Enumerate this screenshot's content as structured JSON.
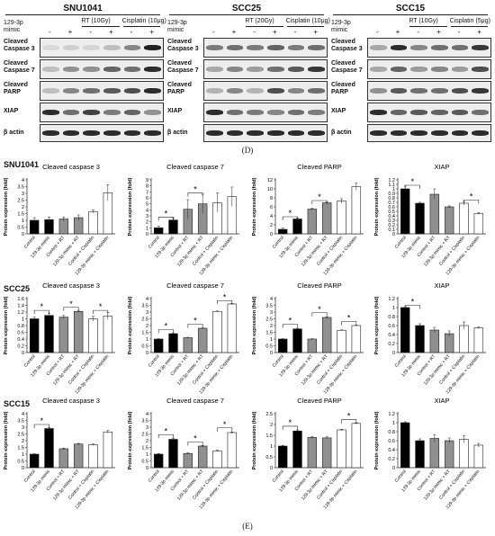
{
  "figure": {
    "label_d": "(D)",
    "label_e": "(E)"
  },
  "blots": [
    {
      "cell_line": "SNU1041",
      "mimic_label": "129-3p mimic",
      "conditions": [
        {
          "label": "RT (10Gy)"
        },
        {
          "label": "Cisplatin (10μg)"
        }
      ],
      "signs": [
        "-",
        "+",
        "-",
        "+",
        "-",
        "+"
      ],
      "rows": [
        {
          "label": "Cleaved Caspase 3",
          "band": [
            0.08,
            0.12,
            0.1,
            0.2,
            0.45,
            0.9
          ]
        },
        {
          "label": "Cleaved Caspase 7",
          "band": [
            0.2,
            0.4,
            0.4,
            0.6,
            0.55,
            0.85
          ]
        },
        {
          "label": "Cleaved PARP",
          "band": [
            0.2,
            0.45,
            0.55,
            0.65,
            0.7,
            0.85
          ]
        },
        {
          "label": "XIAP",
          "band": [
            0.85,
            0.55,
            0.75,
            0.5,
            0.6,
            0.4
          ]
        },
        {
          "label": "β actin",
          "band": [
            0.85,
            0.85,
            0.85,
            0.85,
            0.85,
            0.85
          ]
        }
      ]
    },
    {
      "cell_line": "SCC25",
      "mimic_label": "129-3p mimic",
      "conditions": [
        {
          "label": "RT (20Gy)"
        },
        {
          "label": "Cisplatin (10μg)"
        }
      ],
      "signs": [
        "-",
        "+",
        "-",
        "+",
        "-",
        "+"
      ],
      "rows": [
        {
          "label": "Cleaved Caspase 3",
          "band": [
            0.5,
            0.55,
            0.5,
            0.6,
            0.5,
            0.55
          ]
        },
        {
          "label": "Cleaved Caspase 7",
          "band": [
            0.3,
            0.45,
            0.35,
            0.55,
            0.65,
            0.8
          ]
        },
        {
          "label": "Cleaved PARP",
          "band": [
            0.25,
            0.45,
            0.25,
            0.7,
            0.45,
            0.55
          ]
        },
        {
          "label": "XIAP",
          "band": [
            0.85,
            0.55,
            0.5,
            0.45,
            0.55,
            0.5
          ]
        },
        {
          "label": "β actin",
          "band": [
            0.85,
            0.85,
            0.85,
            0.85,
            0.85,
            0.85
          ]
        }
      ]
    },
    {
      "cell_line": "SCC15",
      "mimic_label": "129-3p mimic",
      "conditions": [
        {
          "label": "RT (10Gy)"
        },
        {
          "label": "Cisplatin (5μg)"
        }
      ],
      "signs": [
        "-",
        "+",
        "-",
        "+",
        "-",
        "+"
      ],
      "rows": [
        {
          "label": "Cleaved Caspase 3",
          "band": [
            0.3,
            0.85,
            0.45,
            0.55,
            0.55,
            0.8
          ]
        },
        {
          "label": "Cleaved Caspase 7",
          "band": [
            0.3,
            0.6,
            0.35,
            0.45,
            0.35,
            0.7
          ]
        },
        {
          "label": "Cleaved PARP",
          "band": [
            0.4,
            0.65,
            0.55,
            0.55,
            0.7,
            0.8
          ]
        },
        {
          "label": "XIAP",
          "band": [
            0.85,
            0.6,
            0.65,
            0.6,
            0.65,
            0.55
          ]
        },
        {
          "label": "β actin",
          "band": [
            0.85,
            0.85,
            0.85,
            0.85,
            0.85,
            0.85
          ]
        }
      ]
    }
  ],
  "chart_data": [
    {
      "type": "bar",
      "row_label": "SNU1041",
      "title": "Cleaved caspase 3",
      "ylabel": "Protein expression (fold)",
      "yticks": [
        0,
        0.5,
        1,
        1.5,
        2,
        2.5,
        3,
        3.5,
        4
      ],
      "ytick_labels": [
        "0",
        "0.5",
        "1",
        "1.5",
        "2",
        "2.5",
        "3",
        "3.5",
        "4"
      ],
      "ylim": [
        0,
        4
      ],
      "categories": [
        "Control",
        "129-3p mimic",
        "Control + RT",
        "129-3p mimic + RT",
        "Control + Cisplatin",
        "129-3p mimic + Cisplatin"
      ],
      "bar_colors": [
        "#000000",
        "#000000",
        "#909090",
        "#909090",
        "#ffffff",
        "#ffffff"
      ],
      "values": [
        1.0,
        1.05,
        1.1,
        1.2,
        1.65,
        3.05
      ],
      "errors": [
        0.2,
        0.2,
        0.15,
        0.2,
        0.1,
        0.6
      ],
      "sig": []
    },
    {
      "type": "bar",
      "row_label": "",
      "title": "Cleaved caspase 7",
      "ylabel": "Protein expression (fold)",
      "yticks": [
        0,
        1,
        2,
        3,
        4,
        5,
        6,
        7,
        8,
        9
      ],
      "ytick_labels": [
        "0",
        "1",
        "2",
        "3",
        "4",
        "5",
        "6",
        "7",
        "8",
        "9"
      ],
      "ylim": [
        0,
        9
      ],
      "categories": [
        "Control",
        "129-3p mimic",
        "Control + RT",
        "129-3p mimic + RT",
        "Control + Cisplatin",
        "129-3p mimic + Cisplatin"
      ],
      "bar_colors": [
        "#000000",
        "#000000",
        "#909090",
        "#909090",
        "#ffffff",
        "#ffffff"
      ],
      "values": [
        1.0,
        2.3,
        4.1,
        5.0,
        5.2,
        6.2
      ],
      "errors": [
        0.3,
        0.3,
        1.6,
        1.6,
        1.6,
        1.6
      ],
      "sig": [
        {
          "from": 0,
          "to": 1,
          "y": 2.8,
          "label": "*"
        },
        {
          "from": 2,
          "to": 3,
          "y": 6.8,
          "label": "*"
        }
      ]
    },
    {
      "type": "bar",
      "row_label": "",
      "title": "Cleaved PARP",
      "ylabel": "Protein expression (fold)",
      "yticks": [
        0,
        2,
        4,
        6,
        8,
        10,
        12
      ],
      "ytick_labels": [
        "0",
        "2",
        "4",
        "6",
        "8",
        "10",
        "12"
      ],
      "ylim": [
        0,
        12
      ],
      "categories": [
        "Control",
        "129-3p mimic",
        "Control + RT",
        "129-3p mimic + RT",
        "Control + Cisplatin",
        "129-3p mimic + Cisplatin"
      ],
      "bar_colors": [
        "#000000",
        "#000000",
        "#909090",
        "#909090",
        "#ffffff",
        "#ffffff"
      ],
      "values": [
        1.0,
        3.3,
        5.5,
        6.9,
        7.3,
        10.5
      ],
      "errors": [
        0.3,
        0.2,
        0.2,
        0.2,
        0.5,
        0.8
      ],
      "sig": [
        {
          "from": 0,
          "to": 1,
          "y": 3.8,
          "label": "*"
        },
        {
          "from": 2,
          "to": 3,
          "y": 7.4,
          "label": "*"
        }
      ]
    },
    {
      "type": "bar",
      "row_label": "",
      "title": "XIAP",
      "ylabel": "Protein expression (fold)",
      "yticks": [
        0,
        0.1,
        0.2,
        0.3,
        0.4,
        0.5,
        0.6,
        0.7,
        0.8,
        0.9,
        1,
        1.1,
        1.2
      ],
      "ytick_labels": [
        "0",
        "0.1",
        "0.2",
        "0.3",
        "0.4",
        "0.5",
        "0.6",
        "0.7",
        "0.8",
        "0.9",
        "1",
        "1.1",
        "1.2"
      ],
      "ylim": [
        0,
        1.2
      ],
      "categories": [
        "Control",
        "129-3p mimic",
        "Control + RT",
        "129-3p mimic + RT",
        "Control + Cisplatin",
        "129-3p mimic + Cisplatin"
      ],
      "bar_colors": [
        "#000000",
        "#000000",
        "#909090",
        "#909090",
        "#ffffff",
        "#ffffff"
      ],
      "values": [
        1.0,
        0.68,
        0.88,
        0.6,
        0.68,
        0.45
      ],
      "errors": [
        0.06,
        0.02,
        0.12,
        0.02,
        0.04,
        0.02
      ],
      "sig": [
        {
          "from": 0,
          "to": 1,
          "y": 1.08,
          "label": "*"
        },
        {
          "from": 4,
          "to": 5,
          "y": 0.75,
          "label": "*"
        }
      ]
    },
    {
      "type": "bar",
      "row_label": "SCC25",
      "title": "Cleaved caspase 3",
      "ylabel": "Protein expression (fold)",
      "yticks": [
        0,
        0.2,
        0.4,
        0.6,
        0.8,
        1,
        1.2,
        1.4,
        1.6
      ],
      "ytick_labels": [
        "0",
        "0.2",
        "0.4",
        "0.6",
        "0.8",
        "1",
        "1.2",
        "1.4",
        "1.6"
      ],
      "ylim": [
        0,
        1.6
      ],
      "categories": [
        "Control",
        "129-3p mimic",
        "Control + RT",
        "129-3p mimic + RT",
        "Control + Cisplatin",
        "129-3p mimic + Cisplatin"
      ],
      "bar_colors": [
        "#000000",
        "#000000",
        "#909090",
        "#909090",
        "#ffffff",
        "#ffffff"
      ],
      "values": [
        1.0,
        1.1,
        1.05,
        1.22,
        1.0,
        1.08
      ],
      "errors": [
        0.05,
        0.07,
        0.05,
        0.03,
        0.07,
        0.1
      ],
      "sig": [
        {
          "from": 0,
          "to": 1,
          "y": 1.25,
          "label": "*"
        },
        {
          "from": 2,
          "to": 3,
          "y": 1.34,
          "label": "*"
        },
        {
          "from": 4,
          "to": 5,
          "y": 1.25,
          "label": "*"
        }
      ]
    },
    {
      "type": "bar",
      "row_label": "",
      "title": "Cleaved caspase 7",
      "ylabel": "Protein expression (fold)",
      "yticks": [
        0,
        0.5,
        1,
        1.5,
        2,
        2.5,
        3,
        3.5,
        4
      ],
      "ytick_labels": [
        "0",
        "0.5",
        "1",
        "1.5",
        "2",
        "2.5",
        "3",
        "3.5",
        "4"
      ],
      "ylim": [
        0,
        4
      ],
      "categories": [
        "Control",
        "129-3p mimic",
        "Control + RT",
        "129-3p mimic + RT",
        "Control + Cisplatin",
        "129-3p mimic + Cisplatin"
      ],
      "bar_colors": [
        "#000000",
        "#000000",
        "#909090",
        "#909090",
        "#ffffff",
        "#ffffff"
      ],
      "values": [
        1.0,
        1.4,
        1.1,
        1.8,
        3.05,
        3.6
      ],
      "errors": [
        0.03,
        0.03,
        0.03,
        0.03,
        0.03,
        0.05
      ],
      "sig": [
        {
          "from": 0,
          "to": 1,
          "y": 1.7,
          "label": "*"
        },
        {
          "from": 2,
          "to": 3,
          "y": 2.1,
          "label": "*"
        },
        {
          "from": 4,
          "to": 5,
          "y": 3.85,
          "label": "*"
        }
      ]
    },
    {
      "type": "bar",
      "row_label": "",
      "title": "Cleaved PARP",
      "ylabel": "Protein expression (fold)",
      "yticks": [
        0,
        0.5,
        1,
        1.5,
        2,
        2.5,
        3,
        3.5,
        4
      ],
      "ytick_labels": [
        "0",
        "0.5",
        "1",
        "1.5",
        "2",
        "2.5",
        "3",
        "3.5",
        "4"
      ],
      "ylim": [
        0,
        4
      ],
      "categories": [
        "Control",
        "129-3p mimic",
        "Control + RT",
        "129-3p mimic + RT",
        "Control + Cisplatin",
        "129-3p mimic + Cisplatin"
      ],
      "bar_colors": [
        "#000000",
        "#000000",
        "#909090",
        "#909090",
        "#ffffff",
        "#ffffff"
      ],
      "values": [
        1.0,
        1.75,
        1.0,
        2.6,
        1.65,
        2.0
      ],
      "errors": [
        0.03,
        0.05,
        0.03,
        0.05,
        0.03,
        0.03
      ],
      "sig": [
        {
          "from": 0,
          "to": 1,
          "y": 2.1,
          "label": "*"
        },
        {
          "from": 2,
          "to": 3,
          "y": 2.95,
          "label": "*"
        },
        {
          "from": 4,
          "to": 5,
          "y": 2.3,
          "label": "*"
        }
      ]
    },
    {
      "type": "bar",
      "row_label": "",
      "title": "XIAP",
      "ylabel": "Protein expression (fold)",
      "yticks": [
        0,
        0.2,
        0.4,
        0.6,
        0.8,
        1,
        1.2
      ],
      "ytick_labels": [
        "0",
        "0.2",
        "0.4",
        "0.6",
        "0.8",
        "1",
        "1.2"
      ],
      "ylim": [
        0,
        1.2
      ],
      "categories": [
        "Control",
        "129-3p mimic",
        "Control + RT",
        "129-3p mimic + RT",
        "Control + Cisplatin",
        "129-3p mimic + Cisplatin"
      ],
      "bar_colors": [
        "#000000",
        "#000000",
        "#909090",
        "#909090",
        "#ffffff",
        "#ffffff"
      ],
      "values": [
        1.0,
        0.6,
        0.5,
        0.42,
        0.6,
        0.55
      ],
      "errors": [
        0.02,
        0.04,
        0.06,
        0.06,
        0.08,
        0.02
      ],
      "sig": [
        {
          "from": 0,
          "to": 1,
          "y": 1.05,
          "label": "*"
        }
      ]
    },
    {
      "type": "bar",
      "row_label": "SCC15",
      "title": "Cleaved caspase 3",
      "ylabel": "Protein expression (fold)",
      "yticks": [
        0,
        0.5,
        1,
        1.5,
        2,
        2.5,
        3,
        3.5,
        4
      ],
      "ytick_labels": [
        "0",
        "0.5",
        "1",
        "1.5",
        "2",
        "2.5",
        "3",
        "3.5",
        "4"
      ],
      "ylim": [
        0,
        4
      ],
      "categories": [
        "Control",
        "129-3p mimic",
        "Control + RT",
        "129-3p mimic + RT",
        "Control + Cisplatin",
        "129-3p mimic + Cisplatin"
      ],
      "bar_colors": [
        "#000000",
        "#000000",
        "#909090",
        "#909090",
        "#ffffff",
        "#ffffff"
      ],
      "values": [
        1.0,
        2.9,
        1.4,
        1.75,
        1.7,
        2.65
      ],
      "errors": [
        0.03,
        0.05,
        0.05,
        0.05,
        0.05,
        0.1
      ],
      "sig": [
        {
          "from": 0,
          "to": 1,
          "y": 3.2,
          "label": "*"
        }
      ]
    },
    {
      "type": "bar",
      "row_label": "",
      "title": "Cleaved caspase 7",
      "ylabel": "Protein expression (fold)",
      "yticks": [
        0,
        0.5,
        1,
        1.5,
        2,
        2.5,
        3,
        3.5,
        4
      ],
      "ytick_labels": [
        "0",
        "0.5",
        "1",
        "1.5",
        "2",
        "2.5",
        "3",
        "3.5",
        "4"
      ],
      "ylim": [
        0,
        4
      ],
      "categories": [
        "Control",
        "129-3p mimic",
        "Control + RT",
        "129-3p mimic + RT",
        "Control + Cisplatin",
        "129-3p mimic + Cisplatin"
      ],
      "bar_colors": [
        "#000000",
        "#000000",
        "#909090",
        "#909090",
        "#ffffff",
        "#ffffff"
      ],
      "values": [
        1.0,
        2.1,
        1.05,
        1.6,
        1.25,
        2.6
      ],
      "errors": [
        0.05,
        0.05,
        0.05,
        0.05,
        0.05,
        0.05
      ],
      "sig": [
        {
          "from": 0,
          "to": 1,
          "y": 2.45,
          "label": "*"
        },
        {
          "from": 2,
          "to": 3,
          "y": 1.9,
          "label": "*"
        },
        {
          "from": 4,
          "to": 5,
          "y": 2.95,
          "label": "*"
        }
      ]
    },
    {
      "type": "bar",
      "row_label": "",
      "title": "Cleaved PARP",
      "ylabel": "Protein expression (fold)",
      "yticks": [
        0,
        0.5,
        1,
        1.5,
        2,
        2.5
      ],
      "ytick_labels": [
        "0",
        "0.5",
        "1",
        "1.5",
        "2",
        "2.5"
      ],
      "ylim": [
        0,
        2.5
      ],
      "categories": [
        "Control",
        "129-3p mimic",
        "Control + RT",
        "129-3p mimic + RT",
        "Control + Cisplatin",
        "129-3p mimic + Cisplatin"
      ],
      "bar_colors": [
        "#000000",
        "#000000",
        "#909090",
        "#909090",
        "#ffffff",
        "#ffffff"
      ],
      "values": [
        1.0,
        1.7,
        1.4,
        1.38,
        1.75,
        2.05
      ],
      "errors": [
        0.03,
        0.05,
        0.05,
        0.05,
        0.03,
        0.03
      ],
      "sig": [
        {
          "from": 0,
          "to": 1,
          "y": 1.92,
          "label": "*"
        },
        {
          "from": 4,
          "to": 5,
          "y": 2.22,
          "label": "*"
        }
      ]
    },
    {
      "type": "bar",
      "row_label": "",
      "title": "XIAP",
      "ylabel": "Protein expression (fold)",
      "yticks": [
        0,
        0.2,
        0.4,
        0.6,
        0.8,
        1,
        1.2
      ],
      "ytick_labels": [
        "0",
        "0.2",
        "0.4",
        "0.6",
        "0.8",
        "1",
        "1.2"
      ],
      "ylim": [
        0,
        1.2
      ],
      "categories": [
        "Control",
        "129-3p mimic",
        "Control + RT",
        "129-3p mimic + RT",
        "Control + Cisplatin",
        "129-3p mimic + Cisplatin"
      ],
      "bar_colors": [
        "#000000",
        "#000000",
        "#909090",
        "#909090",
        "#ffffff",
        "#ffffff"
      ],
      "values": [
        1.0,
        0.6,
        0.65,
        0.6,
        0.63,
        0.5
      ],
      "errors": [
        0.02,
        0.04,
        0.08,
        0.06,
        0.08,
        0.04
      ],
      "sig": []
    }
  ]
}
